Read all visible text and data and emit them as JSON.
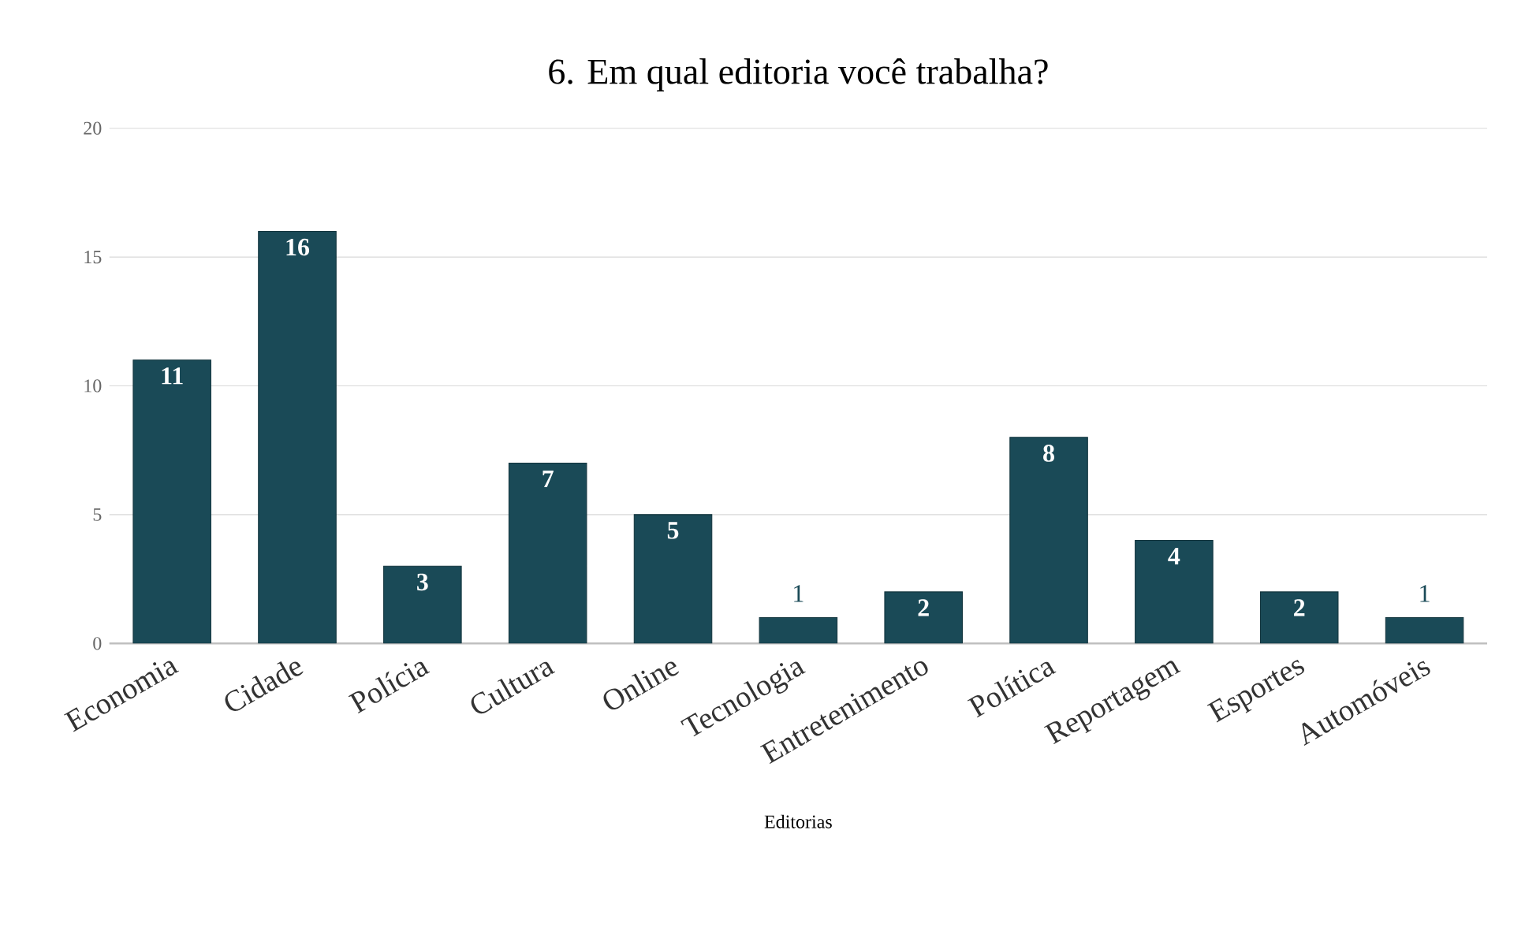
{
  "chart_data": {
    "type": "bar",
    "title": "6. Em qual editoria você trabalha?",
    "xlabel": "Editorias",
    "categories": [
      "Economia",
      "Cidade",
      "Polícia",
      "Cultura",
      "Online",
      "Tecnologia",
      "Entretenimento",
      "Política",
      "Reportagem",
      "Esportes",
      "Automóveis"
    ],
    "values": [
      11,
      16,
      3,
      7,
      5,
      1,
      2,
      8,
      4,
      2,
      1
    ],
    "color": "#1a4a57",
    "ylim": [
      0,
      20
    ],
    "yticks": [
      0,
      5,
      10,
      15,
      20
    ],
    "grid": "y",
    "data_labels": true
  }
}
